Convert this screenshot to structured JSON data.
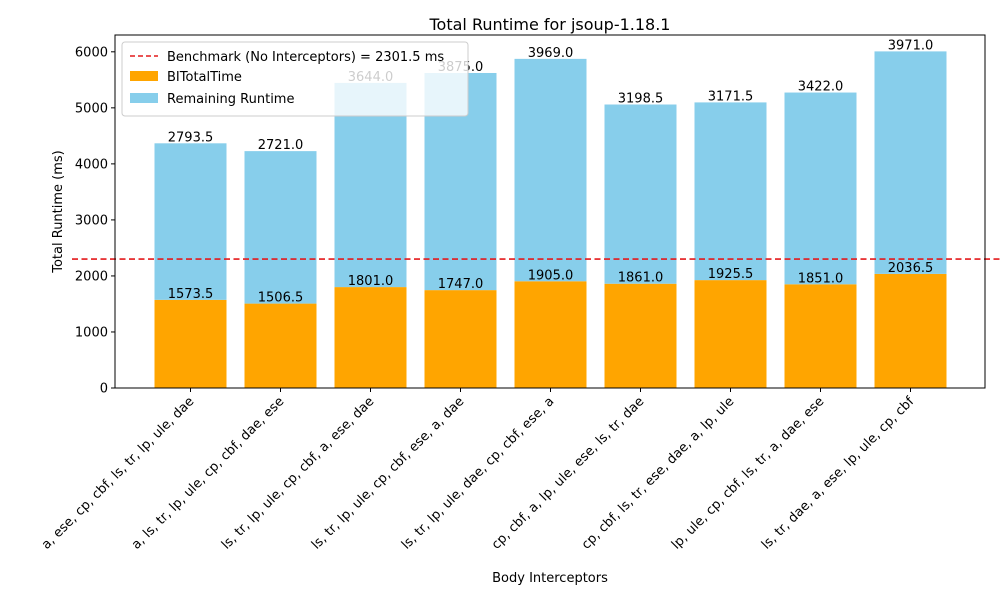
{
  "chart_data": {
    "type": "bar",
    "stacked": true,
    "title": "Total Runtime for jsoup-1.18.1",
    "xlabel": "Body Interceptors",
    "ylabel": "Total Runtime (ms)",
    "ylim": [
      0,
      6300
    ],
    "yticks": [
      0,
      1000,
      2000,
      3000,
      4000,
      5000,
      6000
    ],
    "grid": false,
    "legend_position": "top-left",
    "categories": [
      "a, ese, cp, cbf, ls, tr, lp, ule, dae",
      "a, ls, tr, lp, ule, cp, cbf, dae, ese",
      "ls, tr, lp, ule, cp, cbf, a, ese, dae",
      "ls, tr, lp, ule, cp, cbf, ese, a, dae",
      "ls, tr, lp, ule, dae, cp, cbf, ese, a",
      "cp, cbf, a, lp, ule, ese, ls, tr, dae",
      "cp, cbf, ls, tr, ese, dae, a, lp, ule",
      "lp, ule, cp, cbf, ls, tr, a, dae, ese",
      "ls, tr, dae, a, ese, lp, ule, cp, cbf"
    ],
    "series": [
      {
        "name": "BITotalTime",
        "color": "#ffa500",
        "values": [
          1573.5,
          1506.5,
          1801.0,
          1747.0,
          1905.0,
          1861.0,
          1925.5,
          1851.0,
          2036.5
        ]
      },
      {
        "name": "Remaining Runtime",
        "color": "#87ceeb",
        "values": [
          2793.5,
          2721.0,
          3644.0,
          3875.0,
          3969.0,
          3198.5,
          3171.5,
          3422.0,
          3971.0
        ]
      }
    ],
    "benchmark": {
      "label": "Benchmark (No Interceptors) = 2301.5 ms",
      "value": 2301.5,
      "color": "#e41a1c"
    }
  }
}
